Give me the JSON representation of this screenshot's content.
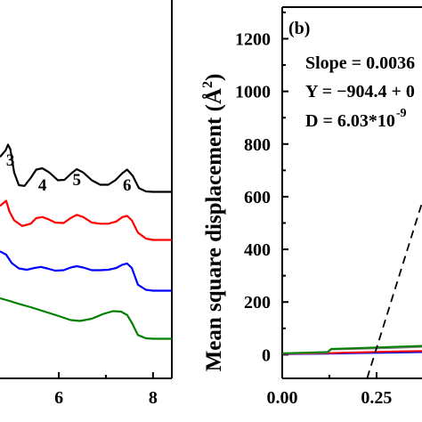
{
  "chart_data": [
    {
      "panel": "left",
      "type": "line",
      "xlabel": "",
      "ylabel": "",
      "x_ticks": [
        "6",
        "8"
      ],
      "x_range": [
        4.75,
        8.4
      ],
      "peak_labels": [
        {
          "text": "3",
          "x": 4.97
        },
        {
          "text": "4",
          "x": 5.65
        },
        {
          "text": "5",
          "x": 6.38
        },
        {
          "text": "6",
          "x": 7.45
        }
      ],
      "series": [
        {
          "color": "#000000",
          "points": [
            [
              4.75,
              2.55
            ],
            [
              4.87,
              2.85
            ],
            [
              4.92,
              3.1
            ],
            [
              4.97,
              2.9
            ],
            [
              5.05,
              1.85
            ],
            [
              5.15,
              1.28
            ],
            [
              5.27,
              1.25
            ],
            [
              5.4,
              1.6
            ],
            [
              5.52,
              1.98
            ],
            [
              5.65,
              2.04
            ],
            [
              5.8,
              1.85
            ],
            [
              5.98,
              1.5
            ],
            [
              6.12,
              1.52
            ],
            [
              6.27,
              1.82
            ],
            [
              6.38,
              2.0
            ],
            [
              6.52,
              1.85
            ],
            [
              6.7,
              1.5
            ],
            [
              6.88,
              1.3
            ],
            [
              7.05,
              1.3
            ],
            [
              7.2,
              1.5
            ],
            [
              7.35,
              1.82
            ],
            [
              7.45,
              1.98
            ],
            [
              7.57,
              1.7
            ],
            [
              7.7,
              1.15
            ],
            [
              7.85,
              1.0
            ],
            [
              8.0,
              0.98
            ],
            [
              8.4,
              0.98
            ]
          ]
        },
        {
          "color": "#ff0000",
          "points": [
            [
              4.75,
              1.75
            ],
            [
              4.88,
              1.98
            ],
            [
              4.95,
              1.5
            ],
            [
              5.05,
              1.1
            ],
            [
              5.22,
              0.85
            ],
            [
              5.4,
              0.95
            ],
            [
              5.52,
              1.2
            ],
            [
              5.65,
              1.25
            ],
            [
              5.78,
              1.15
            ],
            [
              5.92,
              1.0
            ],
            [
              6.1,
              0.98
            ],
            [
              6.25,
              1.2
            ],
            [
              6.38,
              1.35
            ],
            [
              6.52,
              1.25
            ],
            [
              6.7,
              1.0
            ],
            [
              6.88,
              0.95
            ],
            [
              7.05,
              0.95
            ],
            [
              7.22,
              1.05
            ],
            [
              7.35,
              1.25
            ],
            [
              7.45,
              1.3
            ],
            [
              7.55,
              1.1
            ],
            [
              7.68,
              0.55
            ],
            [
              7.85,
              0.28
            ],
            [
              8.0,
              0.22
            ],
            [
              8.4,
              0.22
            ]
          ]
        },
        {
          "color": "#0000ff",
          "points": [
            [
              4.75,
              1.15
            ],
            [
              4.88,
              1.0
            ],
            [
              5.0,
              0.62
            ],
            [
              5.15,
              0.38
            ],
            [
              5.32,
              0.32
            ],
            [
              5.48,
              0.4
            ],
            [
              5.62,
              0.45
            ],
            [
              5.75,
              0.38
            ],
            [
              5.92,
              0.28
            ],
            [
              6.1,
              0.3
            ],
            [
              6.25,
              0.42
            ],
            [
              6.38,
              0.48
            ],
            [
              6.52,
              0.42
            ],
            [
              6.7,
              0.3
            ],
            [
              6.88,
              0.3
            ],
            [
              7.05,
              0.32
            ],
            [
              7.22,
              0.4
            ],
            [
              7.35,
              0.55
            ],
            [
              7.45,
              0.6
            ],
            [
              7.55,
              0.4
            ],
            [
              7.68,
              -0.35
            ],
            [
              7.85,
              -0.58
            ],
            [
              8.0,
              -0.62
            ],
            [
              8.4,
              -0.62
            ]
          ]
        },
        {
          "color": "#008000",
          "points": [
            [
              4.75,
              0.2
            ],
            [
              4.95,
              0.08
            ],
            [
              5.15,
              -0.05
            ],
            [
              5.4,
              -0.2
            ],
            [
              5.7,
              -0.4
            ],
            [
              6.0,
              -0.6
            ],
            [
              6.25,
              -0.78
            ],
            [
              6.45,
              -0.82
            ],
            [
              6.7,
              -0.72
            ],
            [
              6.95,
              -0.5
            ],
            [
              7.15,
              -0.38
            ],
            [
              7.32,
              -0.4
            ],
            [
              7.45,
              -0.55
            ],
            [
              7.55,
              -0.9
            ],
            [
              7.68,
              -1.45
            ],
            [
              7.85,
              -1.6
            ],
            [
              8.0,
              -1.62
            ],
            [
              8.4,
              -1.62
            ]
          ]
        }
      ]
    },
    {
      "panel": "right",
      "type": "line",
      "panel_label": "(b)",
      "ylabel": "Mean square displacement (Å",
      "ylabel_sup": "2",
      "ylabel_close": ")",
      "xlabel": "",
      "y_ticks": [
        "0",
        "200",
        "400",
        "600",
        "800",
        "1000",
        "1200"
      ],
      "x_ticks": [
        "0.00",
        "0.25"
      ],
      "ylim": [
        -90,
        1320
      ],
      "xlim": [
        0,
        0.38
      ],
      "annotations": [
        "Slope = 0.0036",
        "Y = −904.4 + 0",
        "D = 6.03*10"
      ],
      "d_exponent": "-9",
      "fit_line": {
        "style": "dashed",
        "color": "#000000",
        "points": [
          [
            0.225,
            -90
          ],
          [
            0.38,
            620
          ]
        ]
      },
      "series": [
        {
          "color": "#0000ff",
          "points": [
            [
              0.0,
              2
            ],
            [
              0.12,
              4
            ],
            [
              0.2,
              6
            ],
            [
              0.3,
              8
            ],
            [
              0.38,
              10
            ]
          ]
        },
        {
          "color": "#ff0000",
          "points": [
            [
              0.0,
              3
            ],
            [
              0.12,
              6
            ],
            [
              0.2,
              9
            ],
            [
              0.3,
              12
            ],
            [
              0.38,
              14
            ]
          ]
        },
        {
          "color": "#808080",
          "points": [
            [
              0.0,
              4
            ],
            [
              0.12,
              8
            ],
            [
              0.13,
              20
            ],
            [
              0.2,
              22
            ],
            [
              0.3,
              26
            ],
            [
              0.38,
              30
            ]
          ]
        },
        {
          "color": "#008000",
          "points": [
            [
              0.0,
              5
            ],
            [
              0.12,
              10
            ],
            [
              0.13,
              22
            ],
            [
              0.2,
              25
            ],
            [
              0.3,
              30
            ],
            [
              0.38,
              34
            ]
          ]
        }
      ]
    }
  ]
}
